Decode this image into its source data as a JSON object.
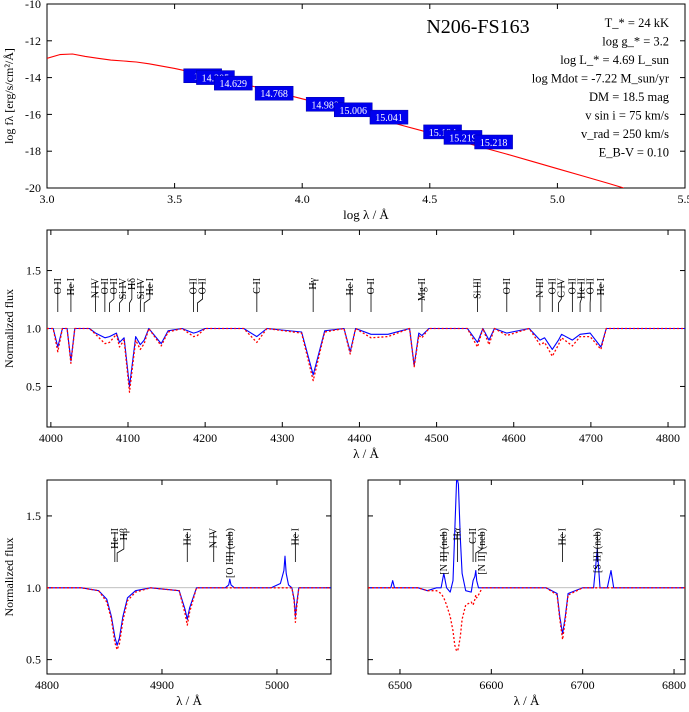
{
  "figure": {
    "object_name": "N206-FS163",
    "params": [
      "T_* = 24 kK",
      "log g_* =  3.2",
      "log L_* = 4.69 L_sun",
      "log Mdot = -7.22 M_sun/yr",
      "DM = 18.5 mag",
      "v sin i = 75 km/s",
      "v_rad = 250 km/s",
      "E_B-V = 0.10"
    ]
  },
  "chart_data": [
    {
      "type": "line",
      "panel": "sed",
      "xlabel": "log λ / Å",
      "ylabel": "log fλ [erg/s/cm²/Å]",
      "xlim": [
        3.0,
        5.5
      ],
      "ylim": [
        -20,
        -10
      ],
      "xticks": [
        3.0,
        3.5,
        4.0,
        4.5,
        5.0,
        5.5
      ],
      "xtick_labels": [
        "3.0",
        "3.5",
        "4.0",
        "4.5",
        "5.0",
        "5.5"
      ],
      "yticks": [
        -20,
        -18,
        -16,
        -14,
        -12,
        -10
      ],
      "ytick_labels": [
        "-20",
        "-18",
        "-16",
        "-14",
        "-12",
        "-10"
      ],
      "series": [
        {
          "color": "#ff0000",
          "x": [
            3.0,
            3.05,
            3.1,
            3.15,
            3.2,
            3.25,
            3.3,
            3.35,
            3.4,
            3.5,
            3.6,
            3.7,
            3.8,
            3.9,
            4.0,
            4.1,
            4.2,
            4.3,
            4.4,
            4.5,
            4.6,
            4.7,
            4.8,
            4.9,
            5.0,
            5.1,
            5.2,
            5.26
          ],
          "y": [
            -12.95,
            -12.75,
            -12.72,
            -12.85,
            -12.95,
            -13.05,
            -13.1,
            -13.15,
            -13.25,
            -13.5,
            -13.8,
            -14.12,
            -14.45,
            -14.8,
            -15.15,
            -15.5,
            -15.87,
            -16.25,
            -16.63,
            -17.0,
            -17.38,
            -17.77,
            -18.15,
            -18.55,
            -18.95,
            -19.35,
            -19.75,
            -20.0
          ]
        }
      ],
      "photometry": [
        {
          "label": "13.9",
          "x": 3.61,
          "y": -13.9
        },
        {
          "label": "14.205",
          "x": 3.66,
          "y": -14.0
        },
        {
          "label": "14.629",
          "x": 3.73,
          "y": -14.3
        },
        {
          "label": "14.768",
          "x": 3.89,
          "y": -14.85
        },
        {
          "label": "14.989",
          "x": 4.09,
          "y": -15.45
        },
        {
          "label": "15.006",
          "x": 4.2,
          "y": -15.75
        },
        {
          "label": "15.041",
          "x": 4.34,
          "y": -16.15
        },
        {
          "label": "15.194",
          "x": 4.55,
          "y": -16.95
        },
        {
          "label": "15.219",
          "x": 4.63,
          "y": -17.25
        },
        {
          "label": "15.218",
          "x": 4.75,
          "y": -17.5
        }
      ]
    },
    {
      "type": "line",
      "panel": "blue",
      "xlabel": "λ / Å",
      "ylabel": "Normalized flux",
      "xlim": [
        3995,
        4822
      ],
      "ylim": [
        0.15,
        1.85
      ],
      "xticks": [
        4000,
        4100,
        4200,
        4300,
        4400,
        4500,
        4600,
        4700,
        4800
      ],
      "xtick_labels": [
        "4000",
        "4100",
        "4200",
        "4300",
        "4400",
        "4500",
        "4600",
        "4700",
        "4800"
      ],
      "yticks": [
        0.5,
        1.0,
        1.5
      ],
      "ytick_labels": [
        "0.5",
        "1.0",
        "1.5"
      ],
      "line_labels": [
        {
          "label": "O II",
          "x": 4009
        },
        {
          "label": "He I",
          "x": 4026
        },
        {
          "label": "N IV",
          "x": 4058
        },
        {
          "label": "O II",
          "x": 4070
        },
        {
          "label": "O II",
          "x": 4076
        },
        {
          "label": "Si IV",
          "x": 4089
        },
        {
          "label": "Hδ",
          "x": 4102
        },
        {
          "label": "Si IV",
          "x": 4116
        },
        {
          "label": "He I",
          "x": 4121
        },
        {
          "label": "O II",
          "x": 4185
        },
        {
          "label": "O II",
          "x": 4190
        },
        {
          "label": "C II",
          "x": 4267
        },
        {
          "label": "Hγ",
          "x": 4340
        },
        {
          "label": "He I",
          "x": 4388
        },
        {
          "label": "O II",
          "x": 4415
        },
        {
          "label": "Mg II",
          "x": 4481
        },
        {
          "label": "Si III",
          "x": 4553
        },
        {
          "label": "O II",
          "x": 4591
        },
        {
          "label": "N III",
          "x": 4634
        },
        {
          "label": "O II",
          "x": 4650
        },
        {
          "label": "C IV",
          "x": 4658
        },
        {
          "label": "O II",
          "x": 4676
        },
        {
          "label": "He II",
          "x": 4686
        },
        {
          "label": "O II",
          "x": 4699
        },
        {
          "label": "He I",
          "x": 4713
        }
      ],
      "series": [
        {
          "color": "#0000ff",
          "x": [
            3995,
            4003,
            4009,
            4015,
            4021,
            4026,
            4031,
            4050,
            4058,
            4070,
            4076,
            4085,
            4089,
            4095,
            4102,
            4110,
            4116,
            4121,
            4127,
            4143,
            4152,
            4170,
            4185,
            4190,
            4200,
            4250,
            4267,
            4280,
            4325,
            4340,
            4355,
            4380,
            4388,
            4395,
            4415,
            4437,
            4465,
            4471,
            4477,
            4481,
            4490,
            4540,
            4553,
            4560,
            4568,
            4575,
            4591,
            4620,
            4634,
            4640,
            4650,
            4658,
            4662,
            4676,
            4686,
            4699,
            4713,
            4720,
            4760,
            4822
          ],
          "y": [
            1.0,
            1.0,
            0.84,
            1.0,
            1.0,
            0.72,
            1.0,
            1.0,
            0.96,
            0.92,
            0.93,
            0.96,
            0.88,
            0.92,
            0.5,
            0.93,
            0.86,
            0.9,
            1.0,
            0.87,
            0.98,
            1.0,
            0.96,
            0.97,
            1.0,
            1.0,
            0.93,
            1.0,
            0.97,
            0.6,
            0.98,
            1.0,
            0.8,
            1.0,
            0.95,
            0.95,
            1.0,
            0.68,
            0.96,
            0.94,
            1.0,
            1.0,
            0.88,
            1.0,
            0.9,
            1.0,
            0.96,
            1.0,
            0.9,
            0.92,
            0.82,
            0.9,
            0.95,
            0.9,
            0.95,
            0.96,
            0.84,
            1.0,
            1.0,
            1.0
          ]
        },
        {
          "color": "#ff0000",
          "dashed": true,
          "x": [
            3995,
            4003,
            4009,
            4015,
            4021,
            4026,
            4031,
            4050,
            4058,
            4070,
            4076,
            4085,
            4089,
            4095,
            4102,
            4110,
            4116,
            4121,
            4127,
            4143,
            4152,
            4170,
            4185,
            4190,
            4200,
            4250,
            4267,
            4280,
            4325,
            4340,
            4355,
            4380,
            4388,
            4395,
            4415,
            4437,
            4465,
            4471,
            4477,
            4481,
            4490,
            4540,
            4553,
            4560,
            4568,
            4575,
            4591,
            4620,
            4634,
            4640,
            4650,
            4658,
            4662,
            4676,
            4686,
            4699,
            4713,
            4720,
            4760,
            4822
          ],
          "y": [
            1.0,
            1.0,
            0.8,
            1.0,
            1.0,
            0.7,
            1.0,
            1.0,
            0.95,
            0.87,
            0.88,
            0.95,
            0.84,
            0.9,
            0.45,
            0.9,
            0.82,
            0.87,
            1.0,
            0.85,
            0.97,
            1.0,
            0.93,
            0.94,
            1.0,
            1.0,
            0.88,
            1.0,
            0.96,
            0.55,
            0.97,
            1.0,
            0.78,
            1.0,
            0.92,
            0.93,
            1.0,
            0.67,
            0.94,
            0.92,
            1.0,
            1.0,
            0.84,
            1.0,
            0.86,
            1.0,
            0.94,
            1.0,
            0.86,
            0.88,
            0.76,
            0.86,
            0.92,
            0.85,
            0.93,
            0.93,
            0.82,
            1.0,
            1.0,
            1.0
          ]
        }
      ]
    },
    {
      "type": "line",
      "panel": "hbeta",
      "xlabel": "λ / Å",
      "ylabel": "Normalized flux",
      "xlim": [
        4800,
        5047
      ],
      "ylim": [
        0.4,
        1.75
      ],
      "xticks": [
        4800,
        4900,
        5000
      ],
      "xtick_labels": [
        "4800",
        "4900",
        "5000"
      ],
      "yticks": [
        0.5,
        1.0,
        1.5
      ],
      "ytick_labels": [
        "0.5",
        "1.0",
        "1.5"
      ],
      "line_labels": [
        {
          "label": "He II",
          "x": 4859
        },
        {
          "label": "Hβ",
          "x": 4861
        },
        {
          "label": "He I",
          "x": 4922
        },
        {
          "label": "N IV",
          "x": 4945
        },
        {
          "label": "[O III] (neb)",
          "x": 4959
        },
        {
          "label": "He I",
          "x": 5016
        }
      ],
      "series": [
        {
          "color": "#0000ff",
          "x": [
            4800,
            4830,
            4845,
            4852,
            4856,
            4859,
            4861,
            4863,
            4866,
            4870,
            4877,
            4890,
            4915,
            4920,
            4922,
            4924,
            4930,
            4955,
            4958,
            4959,
            4960,
            4963,
            4995,
            5003,
            5006,
            5007,
            5008,
            5010,
            5013,
            5015,
            5016,
            5017,
            5019,
            5025,
            5047
          ],
          "y": [
            1.0,
            1.0,
            0.98,
            0.92,
            0.8,
            0.66,
            0.6,
            0.65,
            0.8,
            0.93,
            0.98,
            1.0,
            0.98,
            0.85,
            0.78,
            0.86,
            1.0,
            1.0,
            1.02,
            1.06,
            1.02,
            1.0,
            1.0,
            1.03,
            1.12,
            1.22,
            1.1,
            1.02,
            1.0,
            0.92,
            0.8,
            0.88,
            1.0,
            1.0,
            1.0
          ]
        },
        {
          "color": "#ff0000",
          "dashed": true,
          "x": [
            4800,
            4830,
            4845,
            4852,
            4856,
            4859,
            4861,
            4863,
            4866,
            4870,
            4877,
            4890,
            4915,
            4920,
            4922,
            4924,
            4930,
            4955,
            4958,
            4959,
            4960,
            4963,
            4995,
            5003,
            5006,
            5007,
            5008,
            5010,
            5013,
            5015,
            5016,
            5017,
            5019,
            5025,
            5047
          ],
          "y": [
            1.0,
            1.0,
            0.98,
            0.9,
            0.78,
            0.62,
            0.57,
            0.61,
            0.77,
            0.91,
            0.97,
            1.0,
            0.98,
            0.82,
            0.74,
            0.83,
            1.0,
            1.0,
            1.0,
            1.0,
            1.0,
            1.0,
            1.0,
            1.0,
            1.0,
            1.0,
            1.0,
            1.0,
            1.0,
            0.9,
            0.76,
            0.85,
            1.0,
            1.0,
            1.0
          ]
        }
      ]
    },
    {
      "type": "line",
      "panel": "halpha",
      "xlabel": "λ / Å",
      "ylabel": "",
      "xlim": [
        6465,
        6812
      ],
      "ylim": [
        0.4,
        1.75
      ],
      "xticks": [
        6500,
        6600,
        6700,
        6800
      ],
      "xtick_labels": [
        "6500",
        "6600",
        "6700",
        "6800"
      ],
      "yticks": [
        0.5,
        1.0,
        1.5
      ],
      "ytick_labels": [
        "",
        "",
        ""
      ],
      "line_labels": [
        {
          "label": "[N II] (neb)",
          "x": 6548
        },
        {
          "label": "Hα",
          "x": 6563
        },
        {
          "label": "C II",
          "x": 6580
        },
        {
          "label": "[N II] (neb)",
          "x": 6583
        },
        {
          "label": "He I",
          "x": 6678
        },
        {
          "label": "[S II] (neb)",
          "x": 6716
        }
      ],
      "series": [
        {
          "color": "#0000ff",
          "x": [
            6465,
            6480,
            6490,
            6492,
            6494,
            6520,
            6530,
            6540,
            6545,
            6548,
            6551,
            6555,
            6558,
            6560,
            6562,
            6563,
            6564,
            6566,
            6568,
            6572,
            6578,
            6580,
            6582,
            6583,
            6584,
            6586,
            6590,
            6620,
            6660,
            6672,
            6675,
            6678,
            6681,
            6684,
            6700,
            6712,
            6716,
            6719,
            6727,
            6731,
            6734,
            6760,
            6812
          ],
          "y": [
            1.0,
            1.0,
            1.0,
            1.05,
            1.0,
            1.0,
            0.98,
            1.0,
            1.0,
            1.1,
            1.0,
            0.97,
            1.05,
            1.4,
            1.75,
            1.75,
            1.72,
            1.35,
            1.1,
            0.98,
            0.97,
            1.05,
            1.08,
            1.12,
            1.05,
            1.0,
            1.0,
            1.0,
            1.0,
            0.96,
            0.8,
            0.68,
            0.8,
            0.96,
            1.0,
            1.0,
            1.27,
            1.0,
            1.0,
            1.12,
            1.0,
            1.0,
            1.0
          ]
        },
        {
          "color": "#ff0000",
          "dashed": true,
          "x": [
            6465,
            6480,
            6490,
            6492,
            6494,
            6520,
            6530,
            6540,
            6545,
            6548,
            6551,
            6555,
            6558,
            6560,
            6562,
            6563,
            6564,
            6566,
            6568,
            6572,
            6578,
            6580,
            6582,
            6583,
            6584,
            6586,
            6590,
            6620,
            6660,
            6672,
            6675,
            6678,
            6681,
            6684,
            6700,
            6712,
            6716,
            6719,
            6727,
            6731,
            6734,
            6760,
            6812
          ],
          "y": [
            1.0,
            1.0,
            1.0,
            1.0,
            1.0,
            1.0,
            0.98,
            0.98,
            0.96,
            0.93,
            0.88,
            0.8,
            0.7,
            0.6,
            0.56,
            0.56,
            0.58,
            0.66,
            0.78,
            0.88,
            0.9,
            0.88,
            0.92,
            0.95,
            0.93,
            0.95,
            1.0,
            1.0,
            1.0,
            0.95,
            0.78,
            0.64,
            0.78,
            0.95,
            1.0,
            1.0,
            1.0,
            1.0,
            1.0,
            1.0,
            1.0,
            1.0,
            1.0
          ]
        }
      ]
    }
  ]
}
